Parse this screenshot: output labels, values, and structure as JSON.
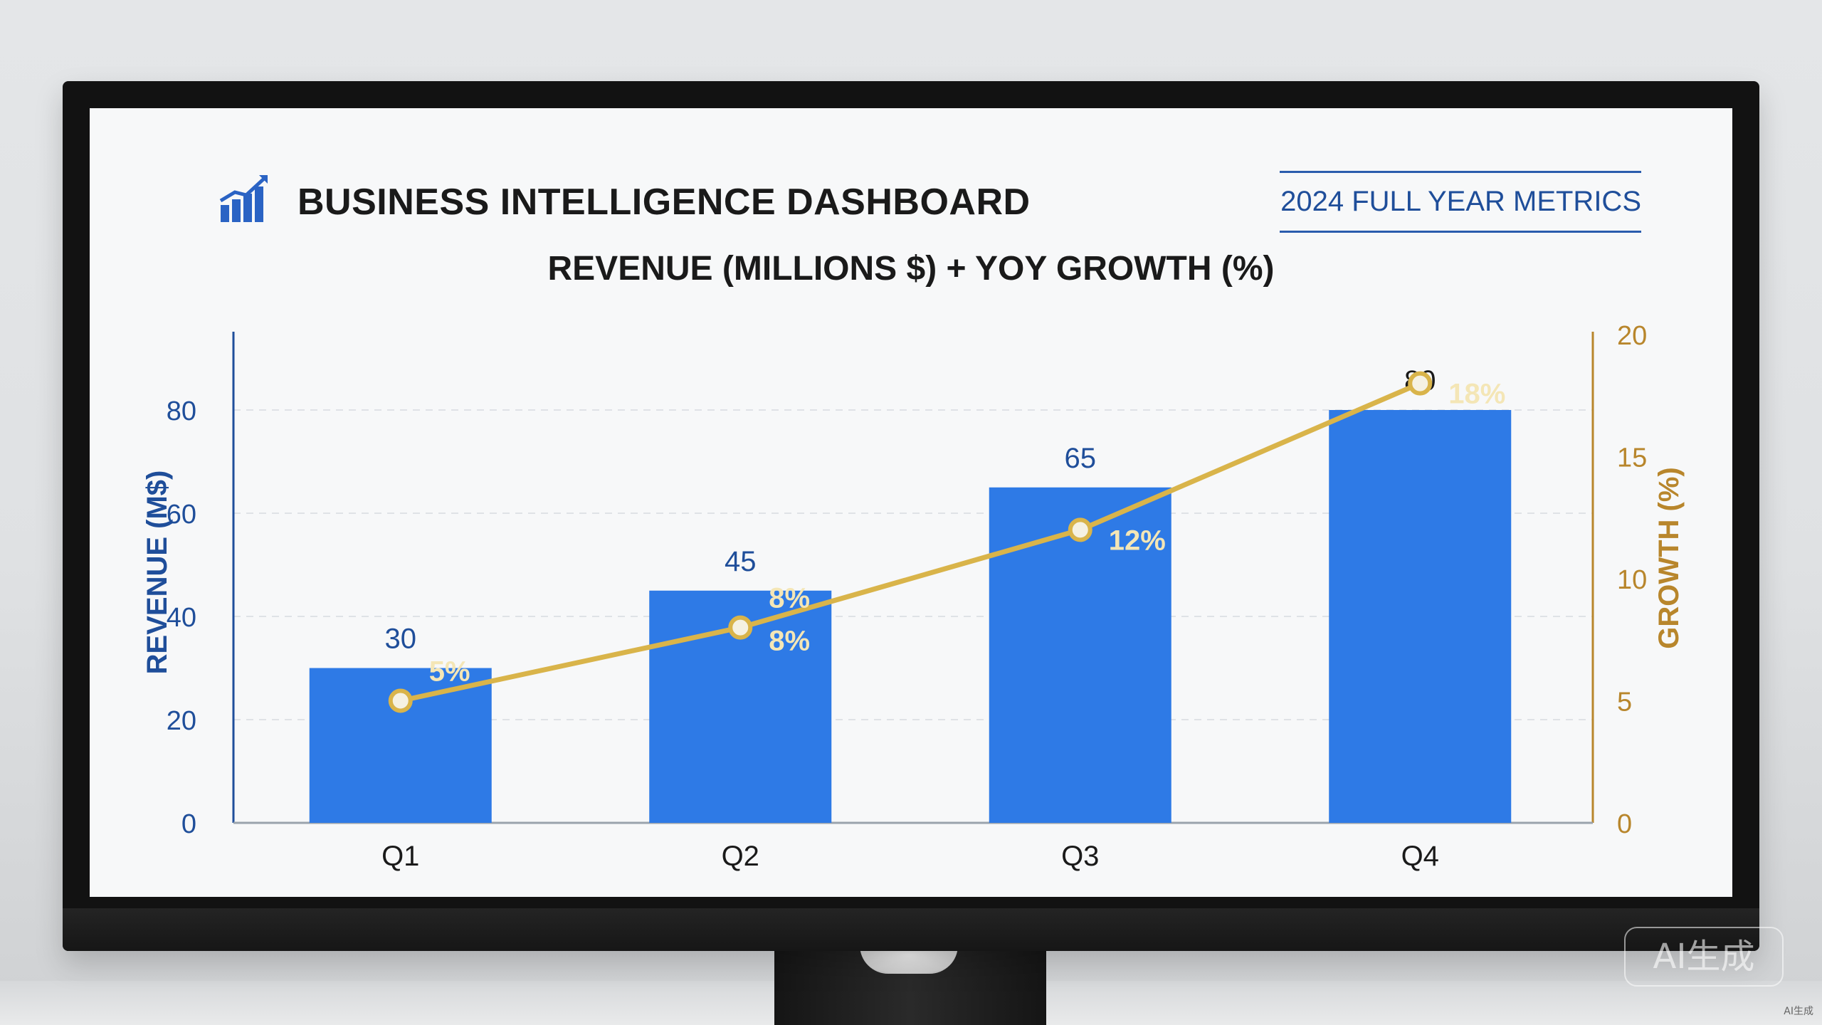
{
  "header": {
    "title": "BUSINESS INTELLIGENCE DASHBOARD",
    "period_label": "2024 FULL YEAR METRICS"
  },
  "colors": {
    "bar": "#2e7ae6",
    "line": "#d9b44a",
    "left_axis": "#1f4e9a",
    "right_axis": "#b8862c"
  },
  "watermark": {
    "text": "AI生成",
    "corner_text": "AI生成"
  },
  "chart_data": {
    "type": "bar",
    "title": "REVENUE (MILLIONS $) + YOY GROWTH (%)",
    "categories": [
      "Q1",
      "Q2",
      "Q3",
      "Q4"
    ],
    "series": [
      {
        "type": "bar",
        "axis": "left",
        "values": [
          30,
          45,
          65,
          80
        ],
        "data_labels": [
          "30",
          "45",
          "65",
          "80"
        ]
      },
      {
        "type": "line",
        "axis": "right",
        "values": [
          5,
          8,
          12,
          18
        ],
        "data_labels": [
          "5%",
          "8%",
          "12%",
          "18%"
        ]
      }
    ],
    "extra_annotation": "8%",
    "ylabel": "REVENUE (M$)",
    "ylabel_right": "GROWTH (%)",
    "ylim": [
      0,
      80
    ],
    "ylim_right": [
      0,
      20
    ],
    "yticks": [
      "0",
      "20",
      "40",
      "60",
      "80"
    ],
    "yticks_right": [
      "0",
      "5",
      "10",
      "15",
      "20"
    ],
    "grid": true
  }
}
